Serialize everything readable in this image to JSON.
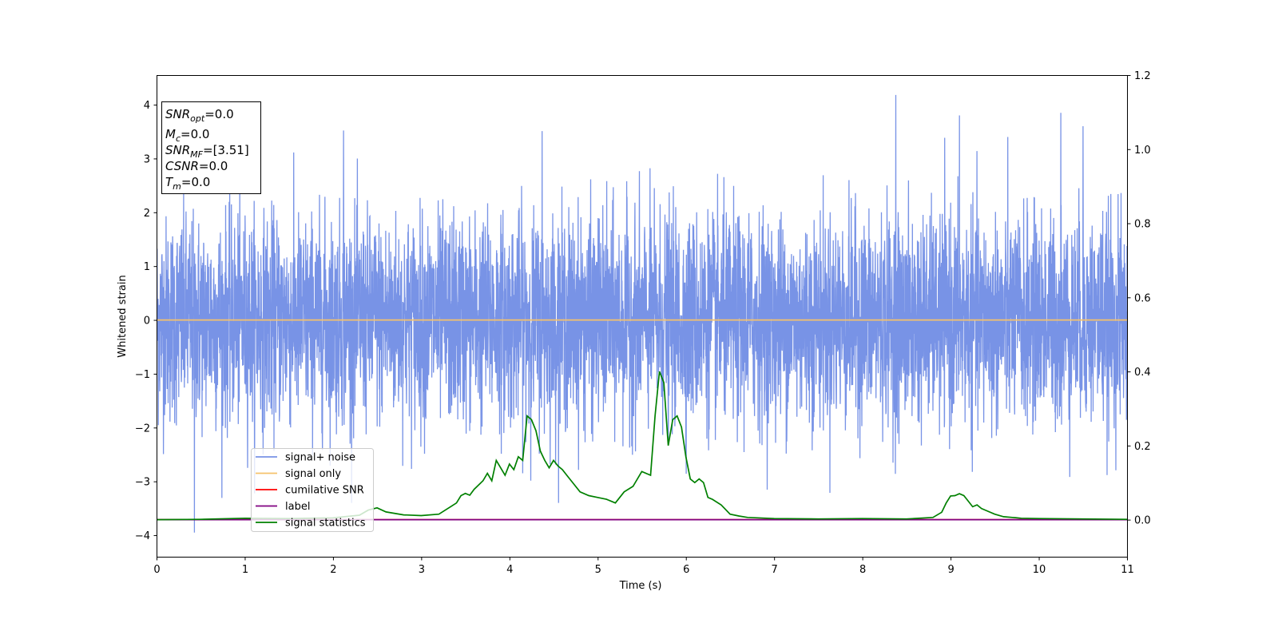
{
  "chart_data": {
    "type": "line",
    "xlabel": "Time (s)",
    "ylabel": "Whitened strain",
    "xlim": [
      0,
      11
    ],
    "ylim_left": [
      -4.4,
      4.55
    ],
    "ylim_right": [
      -0.1,
      1.2
    ],
    "xticks": [
      "0",
      "1",
      "2",
      "3",
      "4",
      "5",
      "6",
      "7",
      "8",
      "9",
      "10",
      "11"
    ],
    "yticks_left": [
      "−4",
      "−3",
      "−2",
      "−1",
      "0",
      "1",
      "2",
      "3",
      "4"
    ],
    "yticks_right": [
      "0.0",
      "0.2",
      "0.4",
      "0.6",
      "0.8",
      "1.0",
      "1.2"
    ],
    "grid": false,
    "legend_position": "lower-left",
    "info_box": {
      "lines": [
        {
          "base": "SNR",
          "sub": "opt",
          "rest": "=0.0"
        },
        {
          "base": "M",
          "sub": "c",
          "rest": "=0.0"
        },
        {
          "base": "SNR",
          "sub": "MF",
          "rest": "=[3.51]"
        },
        {
          "base": "CSNR",
          "sub": "",
          "rest": "=0.0"
        },
        {
          "base": "T",
          "sub": "m",
          "rest": "=0.0"
        }
      ]
    },
    "series": [
      {
        "name": "signal+ noise",
        "color": "#7893e6",
        "axis": "left",
        "description_values": {
          "mean": 0.0,
          "typical_range": [
            -2.2,
            2.2
          ],
          "extremes": [
            -3.95,
            4.18
          ],
          "peaks": [
            [
              0.43,
              -3.95
            ],
            [
              8.38,
              4.18
            ],
            [
              2.12,
              3.52
            ],
            [
              4.37,
              3.51
            ],
            [
              9.1,
              3.8
            ],
            [
              10.25,
              3.85
            ],
            [
              10.5,
              3.6
            ]
          ]
        }
      },
      {
        "name": "signal only",
        "color": "#f5c26b",
        "axis": "left",
        "x": [
          0,
          11
        ],
        "y": [
          0,
          0
        ]
      },
      {
        "name": "cumilative SNR",
        "color": "#ff0000",
        "axis": "right",
        "x": [
          0,
          11
        ],
        "y": [
          0,
          0
        ]
      },
      {
        "name": "label",
        "color": "#800080",
        "axis": "right",
        "x": [
          0,
          11
        ],
        "y": [
          0,
          0
        ]
      },
      {
        "name": "signal statistics",
        "color": "#008000",
        "axis": "right",
        "x": [
          0,
          0.5,
          1.0,
          1.5,
          2.0,
          2.3,
          2.4,
          2.5,
          2.6,
          2.8,
          3.0,
          3.2,
          3.3,
          3.4,
          3.45,
          3.5,
          3.55,
          3.6,
          3.7,
          3.75,
          3.8,
          3.85,
          3.9,
          3.95,
          4.0,
          4.05,
          4.1,
          4.15,
          4.2,
          4.25,
          4.3,
          4.35,
          4.4,
          4.45,
          4.5,
          4.55,
          4.6,
          4.65,
          4.7,
          4.8,
          4.9,
          5.0,
          5.1,
          5.2,
          5.3,
          5.4,
          5.5,
          5.6,
          5.65,
          5.7,
          5.75,
          5.8,
          5.85,
          5.9,
          5.95,
          6.0,
          6.05,
          6.1,
          6.15,
          6.2,
          6.25,
          6.3,
          6.4,
          6.5,
          6.6,
          6.7,
          7.0,
          7.5,
          8.0,
          8.5,
          8.8,
          8.9,
          8.95,
          9.0,
          9.05,
          9.1,
          9.15,
          9.2,
          9.25,
          9.3,
          9.35,
          9.4,
          9.5,
          9.6,
          9.7,
          9.8,
          10.0,
          10.5,
          11.0
        ],
        "y": [
          0.0,
          0.001,
          0.004,
          0.003,
          0.005,
          0.012,
          0.026,
          0.032,
          0.021,
          0.013,
          0.011,
          0.015,
          0.03,
          0.045,
          0.065,
          0.071,
          0.066,
          0.082,
          0.105,
          0.125,
          0.105,
          0.16,
          0.14,
          0.12,
          0.15,
          0.135,
          0.17,
          0.16,
          0.28,
          0.27,
          0.24,
          0.185,
          0.16,
          0.14,
          0.16,
          0.145,
          0.135,
          0.12,
          0.105,
          0.075,
          0.065,
          0.06,
          0.055,
          0.045,
          0.075,
          0.09,
          0.13,
          0.12,
          0.28,
          0.4,
          0.37,
          0.2,
          0.27,
          0.28,
          0.25,
          0.17,
          0.11,
          0.1,
          0.11,
          0.1,
          0.06,
          0.055,
          0.04,
          0.015,
          0.01,
          0.006,
          0.003,
          0.002,
          0.003,
          0.002,
          0.006,
          0.02,
          0.045,
          0.064,
          0.065,
          0.07,
          0.065,
          0.05,
          0.035,
          0.04,
          0.03,
          0.025,
          0.015,
          0.008,
          0.006,
          0.004,
          0.003,
          0.002,
          0.001
        ]
      }
    ]
  }
}
